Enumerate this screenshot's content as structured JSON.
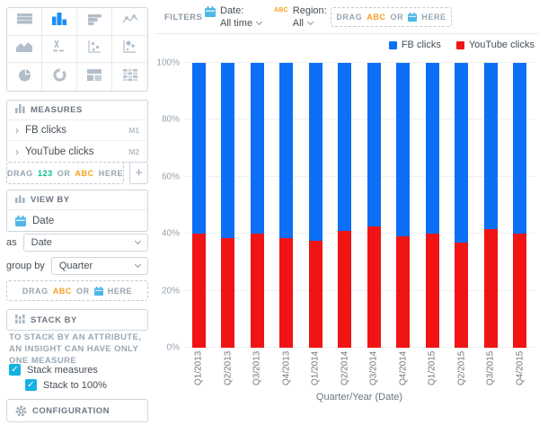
{
  "icons": {
    "chevron_right": "›",
    "check": "✓",
    "plus": "+"
  },
  "colors": {
    "fb_blue": "#0C6FF5",
    "yt_red": "#F01414",
    "accent_orange": "#F5A01E",
    "accent_green": "#00C18D",
    "accent_lightblue": "#14B2E2",
    "selected_viz_blue": "#1B8DF3"
  },
  "viz_picker": {
    "selected": "column-chart",
    "items": [
      "table",
      "column-chart",
      "bar-chart",
      "line-chart",
      "area-chart",
      "headline",
      "scatter-plot",
      "bubble-chart",
      "pie-chart",
      "donut-chart",
      "treemap",
      "heatmap"
    ]
  },
  "measures": {
    "title": "MEASURES",
    "items": [
      {
        "label": "FB clicks",
        "tag": "M1"
      },
      {
        "label": "YouTube clicks",
        "tag": "M2"
      }
    ],
    "drop_zone": {
      "drag": "DRAG",
      "num": "123",
      "or": "OR",
      "abc": "ABC",
      "here": "HERE"
    }
  },
  "view_by": {
    "title": "VIEW BY",
    "item_label": "Date",
    "as_label": "as",
    "as_value": "Date",
    "group_by_label": "group by",
    "group_by_value": "Quarter",
    "drop_zone": {
      "drag": "DRAG",
      "abc": "ABC",
      "or": "OR",
      "here": "HERE"
    }
  },
  "stack_by": {
    "title": "STACK BY",
    "note": "TO STACK BY AN ATTRIBUTE, AN INSIGHT CAN HAVE ONLY ONE MEASURE",
    "checkboxes": [
      {
        "label": "Stack measures",
        "checked": true
      },
      {
        "label": "Stack to 100%",
        "checked": true
      }
    ]
  },
  "configuration": {
    "title": "CONFIGURATION"
  },
  "filter_bar": {
    "label": "FILTERS",
    "date_filter": {
      "name": "Date:",
      "value": "All time"
    },
    "region_filter": {
      "abc": "ABC",
      "name": "Region:",
      "value": "All"
    },
    "drop_zone": {
      "drag": "DRAG",
      "abc": "ABC",
      "or": "OR",
      "here": "HERE"
    }
  },
  "chart_data": {
    "type": "bar",
    "stacked": true,
    "stack_to_100_percent": true,
    "categories": [
      "Q1/2013",
      "Q2/2013",
      "Q3/2013",
      "Q4/2013",
      "Q1/2014",
      "Q2/2014",
      "Q3/2014",
      "Q4/2014",
      "Q1/2015",
      "Q2/2015",
      "Q3/2015",
      "Q4/2015"
    ],
    "series": [
      {
        "name": "FB clicks",
        "color": "#0C6FF5",
        "values": [
          60,
          61.5,
          60,
          61.5,
          62.5,
          59,
          57.5,
          61,
          60,
          63,
          58.5,
          60
        ]
      },
      {
        "name": "YouTube clicks",
        "color": "#F01414",
        "values": [
          40,
          38.5,
          40,
          38.5,
          37.5,
          41,
          42.5,
          39,
          40,
          37,
          41.5,
          40
        ]
      }
    ],
    "value_format": "%",
    "xlabel": "Quarter/Year (Date)",
    "ylabel": "",
    "ylim": [
      0,
      100
    ],
    "y_ticks": [
      "0%",
      "20%",
      "40%",
      "60%",
      "80%",
      "100%"
    ],
    "grid": true,
    "legend_position": "top-right"
  }
}
